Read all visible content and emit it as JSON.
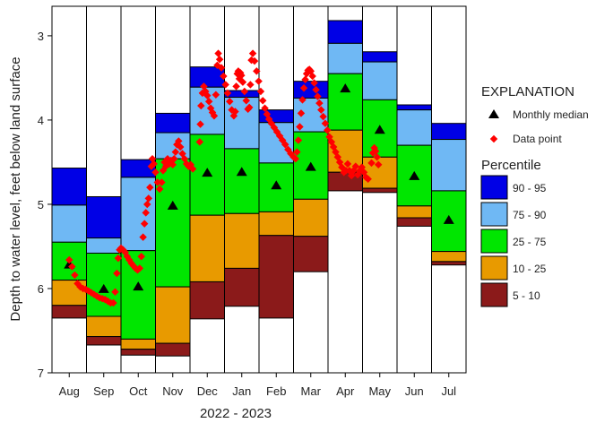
{
  "chart_data": {
    "type": "bar",
    "xlabel": "2022 - 2023",
    "ylabel": "Depth to water level, feet below land surface",
    "ylim": [
      7,
      2.65
    ],
    "y_inverted": true,
    "y_ticks": [
      3,
      4,
      5,
      6,
      7
    ],
    "grid": false,
    "legend_position": "right",
    "categories": [
      "Aug",
      "Sep",
      "Oct",
      "Nov",
      "Dec",
      "Jan",
      "Feb",
      "Mar",
      "Apr",
      "May",
      "Jun",
      "Jul"
    ],
    "percentile_bands": [
      {
        "name": "90 - 95",
        "color": "#0000e6",
        "top": [
          4.57,
          4.91,
          4.47,
          3.92,
          3.37,
          3.65,
          3.88,
          3.54,
          2.82,
          3.19,
          3.82,
          4.04
        ]
      },
      {
        "name": "75 - 90",
        "color": "#6fb8f4",
        "top": [
          5.01,
          5.4,
          4.68,
          4.15,
          3.61,
          3.73,
          4.03,
          3.74,
          3.09,
          3.31,
          3.88,
          4.23
        ]
      },
      {
        "name": "25 - 75",
        "color": "#00e600",
        "top": [
          5.45,
          5.58,
          5.55,
          4.46,
          4.17,
          4.34,
          4.51,
          4.14,
          3.45,
          3.76,
          4.3,
          4.84
        ]
      },
      {
        "name": "10 - 25",
        "color": "#e89a00",
        "top": [
          5.9,
          6.33,
          6.6,
          5.98,
          5.13,
          5.11,
          5.09,
          4.94,
          4.12,
          4.44,
          5.02,
          5.56
        ]
      },
      {
        "name": "5 - 10",
        "color": "#8b1a1a",
        "top": [
          6.2,
          6.57,
          6.72,
          6.65,
          5.92,
          5.76,
          5.37,
          5.38,
          4.62,
          4.81,
          5.16,
          5.68
        ],
        "bottom": [
          6.35,
          6.67,
          6.79,
          6.8,
          6.36,
          6.21,
          6.35,
          5.8,
          4.84,
          4.86,
          5.26,
          5.72
        ]
      }
    ],
    "monthly_median": [
      5.72,
      6.01,
      5.98,
      5.02,
      4.63,
      4.62,
      4.78,
      4.56,
      3.63,
      4.12,
      4.67,
      5.19
    ],
    "data_points": [
      {
        "x": 0.0,
        "y": 5.66
      },
      {
        "x": 0.08,
        "y": 5.74
      },
      {
        "x": 0.16,
        "y": 5.84
      },
      {
        "x": 0.24,
        "y": 5.94
      },
      {
        "x": 0.32,
        "y": 5.98
      },
      {
        "x": 0.4,
        "y": 6.0
      },
      {
        "x": 0.48,
        "y": 6.01
      },
      {
        "x": 0.56,
        "y": 6.03
      },
      {
        "x": 0.64,
        "y": 6.05
      },
      {
        "x": 0.72,
        "y": 6.07
      },
      {
        "x": 0.8,
        "y": 6.09
      },
      {
        "x": 0.88,
        "y": 6.11
      },
      {
        "x": 0.96,
        "y": 6.12
      },
      {
        "x": 1.04,
        "y": 6.13
      },
      {
        "x": 1.12,
        "y": 6.15
      },
      {
        "x": 1.2,
        "y": 6.17
      },
      {
        "x": 1.28,
        "y": 6.17
      },
      {
        "x": 1.33,
        "y": 6.04
      },
      {
        "x": 1.38,
        "y": 5.82
      },
      {
        "x": 1.42,
        "y": 5.64
      },
      {
        "x": 1.46,
        "y": 5.54
      },
      {
        "x": 1.5,
        "y": 5.52
      },
      {
        "x": 1.56,
        "y": 5.54
      },
      {
        "x": 1.62,
        "y": 5.57
      },
      {
        "x": 1.68,
        "y": 5.62
      },
      {
        "x": 1.74,
        "y": 5.66
      },
      {
        "x": 1.8,
        "y": 5.7
      },
      {
        "x": 1.86,
        "y": 5.73
      },
      {
        "x": 1.92,
        "y": 5.76
      },
      {
        "x": 1.98,
        "y": 5.78
      },
      {
        "x": 2.04,
        "y": 5.76
      },
      {
        "x": 2.09,
        "y": 5.62
      },
      {
        "x": 2.14,
        "y": 5.39
      },
      {
        "x": 2.18,
        "y": 5.23
      },
      {
        "x": 2.22,
        "y": 5.1
      },
      {
        "x": 2.26,
        "y": 5.0
      },
      {
        "x": 2.3,
        "y": 4.93
      },
      {
        "x": 2.34,
        "y": 4.8
      },
      {
        "x": 2.38,
        "y": 4.55
      },
      {
        "x": 2.41,
        "y": 4.46
      },
      {
        "x": 2.45,
        "y": 4.52
      },
      {
        "x": 2.5,
        "y": 4.62
      },
      {
        "x": 2.56,
        "y": 4.74
      },
      {
        "x": 2.62,
        "y": 4.82
      },
      {
        "x": 2.68,
        "y": 4.74
      },
      {
        "x": 2.72,
        "y": 4.6
      },
      {
        "x": 2.76,
        "y": 4.5
      },
      {
        "x": 2.8,
        "y": 4.55
      },
      {
        "x": 2.85,
        "y": 4.46
      },
      {
        "x": 2.9,
        "y": 4.52
      },
      {
        "x": 2.95,
        "y": 4.48
      },
      {
        "x": 3.0,
        "y": 4.53
      },
      {
        "x": 3.04,
        "y": 4.46
      },
      {
        "x": 3.08,
        "y": 4.38
      },
      {
        "x": 3.12,
        "y": 4.29
      },
      {
        "x": 3.17,
        "y": 4.25
      },
      {
        "x": 3.22,
        "y": 4.32
      },
      {
        "x": 3.28,
        "y": 4.4
      },
      {
        "x": 3.34,
        "y": 4.46
      },
      {
        "x": 3.4,
        "y": 4.52
      },
      {
        "x": 3.46,
        "y": 4.55
      },
      {
        "x": 3.52,
        "y": 4.53
      },
      {
        "x": 3.58,
        "y": 4.58
      },
      {
        "x": 3.78,
        "y": 4.26
      },
      {
        "x": 3.8,
        "y": 4.05
      },
      {
        "x": 3.82,
        "y": 3.83
      },
      {
        "x": 3.86,
        "y": 3.68
      },
      {
        "x": 3.9,
        "y": 3.6
      },
      {
        "x": 3.95,
        "y": 3.66
      },
      {
        "x": 4.0,
        "y": 3.71
      },
      {
        "x": 4.05,
        "y": 3.78
      },
      {
        "x": 4.1,
        "y": 3.86
      },
      {
        "x": 4.15,
        "y": 3.91
      },
      {
        "x": 4.2,
        "y": 3.95
      },
      {
        "x": 4.25,
        "y": 3.7
      },
      {
        "x": 4.29,
        "y": 3.35
      },
      {
        "x": 4.32,
        "y": 3.21
      },
      {
        "x": 4.36,
        "y": 3.28
      },
      {
        "x": 4.41,
        "y": 3.38
      },
      {
        "x": 4.47,
        "y": 3.48
      },
      {
        "x": 4.53,
        "y": 3.58
      },
      {
        "x": 4.59,
        "y": 3.68
      },
      {
        "x": 4.65,
        "y": 3.78
      },
      {
        "x": 4.71,
        "y": 3.88
      },
      {
        "x": 4.77,
        "y": 3.95
      },
      {
        "x": 4.81,
        "y": 3.9
      },
      {
        "x": 4.84,
        "y": 3.6
      },
      {
        "x": 4.87,
        "y": 3.45
      },
      {
        "x": 4.9,
        "y": 3.42
      },
      {
        "x": 4.93,
        "y": 3.51
      },
      {
        "x": 4.96,
        "y": 3.44
      },
      {
        "x": 4.99,
        "y": 3.47
      },
      {
        "x": 5.03,
        "y": 3.55
      },
      {
        "x": 5.08,
        "y": 3.66
      },
      {
        "x": 5.13,
        "y": 3.77
      },
      {
        "x": 5.18,
        "y": 3.87
      },
      {
        "x": 5.22,
        "y": 3.85
      },
      {
        "x": 5.25,
        "y": 3.58
      },
      {
        "x": 5.28,
        "y": 3.29
      },
      {
        "x": 5.32,
        "y": 3.21
      },
      {
        "x": 5.37,
        "y": 3.3
      },
      {
        "x": 5.43,
        "y": 3.42
      },
      {
        "x": 5.49,
        "y": 3.54
      },
      {
        "x": 5.55,
        "y": 3.66
      },
      {
        "x": 5.61,
        "y": 3.77
      },
      {
        "x": 5.67,
        "y": 3.86
      },
      {
        "x": 5.73,
        "y": 3.93
      },
      {
        "x": 5.79,
        "y": 3.99
      },
      {
        "x": 5.86,
        "y": 4.04
      },
      {
        "x": 5.94,
        "y": 4.09
      },
      {
        "x": 6.02,
        "y": 4.14
      },
      {
        "x": 6.1,
        "y": 4.19
      },
      {
        "x": 6.18,
        "y": 4.24
      },
      {
        "x": 6.26,
        "y": 4.29
      },
      {
        "x": 6.34,
        "y": 4.35
      },
      {
        "x": 6.42,
        "y": 4.4
      },
      {
        "x": 6.5,
        "y": 4.44
      },
      {
        "x": 6.56,
        "y": 4.46
      },
      {
        "x": 6.6,
        "y": 4.38
      },
      {
        "x": 6.64,
        "y": 4.24
      },
      {
        "x": 6.68,
        "y": 4.08
      },
      {
        "x": 6.72,
        "y": 3.92
      },
      {
        "x": 6.76,
        "y": 3.76
      },
      {
        "x": 6.8,
        "y": 3.62
      },
      {
        "x": 6.84,
        "y": 3.52
      },
      {
        "x": 6.88,
        "y": 3.45
      },
      {
        "x": 6.92,
        "y": 3.41
      },
      {
        "x": 6.96,
        "y": 3.4
      },
      {
        "x": 7.0,
        "y": 3.42
      },
      {
        "x": 7.05,
        "y": 3.48
      },
      {
        "x": 7.1,
        "y": 3.56
      },
      {
        "x": 7.15,
        "y": 3.64
      },
      {
        "x": 7.2,
        "y": 3.72
      },
      {
        "x": 7.25,
        "y": 3.8
      },
      {
        "x": 7.3,
        "y": 3.88
      },
      {
        "x": 7.36,
        "y": 3.96
      },
      {
        "x": 7.42,
        "y": 4.04
      },
      {
        "x": 7.48,
        "y": 4.12
      },
      {
        "x": 7.54,
        "y": 4.2
      },
      {
        "x": 7.6,
        "y": 4.26
      },
      {
        "x": 7.66,
        "y": 4.32
      },
      {
        "x": 7.72,
        "y": 4.38
      },
      {
        "x": 7.78,
        "y": 4.44
      },
      {
        "x": 7.84,
        "y": 4.5
      },
      {
        "x": 7.9,
        "y": 4.56
      },
      {
        "x": 7.96,
        "y": 4.62
      },
      {
        "x": 8.02,
        "y": 4.6
      },
      {
        "x": 8.07,
        "y": 4.52
      },
      {
        "x": 8.12,
        "y": 4.6
      },
      {
        "x": 8.18,
        "y": 4.66
      },
      {
        "x": 8.24,
        "y": 4.6
      },
      {
        "x": 8.3,
        "y": 4.55
      },
      {
        "x": 8.36,
        "y": 4.65
      },
      {
        "x": 8.42,
        "y": 4.6
      },
      {
        "x": 8.48,
        "y": 4.56
      },
      {
        "x": 8.54,
        "y": 4.62
      },
      {
        "x": 8.6,
        "y": 4.68
      },
      {
        "x": 8.66,
        "y": 4.7
      },
      {
        "x": 8.76,
        "y": 4.51
      },
      {
        "x": 8.8,
        "y": 4.39
      },
      {
        "x": 8.84,
        "y": 4.33
      },
      {
        "x": 8.88,
        "y": 4.37
      },
      {
        "x": 8.92,
        "y": 4.44
      },
      {
        "x": 8.96,
        "y": 4.53
      }
    ]
  },
  "legend": {
    "title": "EXPLANATION",
    "median_label": "Monthly median",
    "point_label": "Data point",
    "percentile_title": "Percentile"
  },
  "colors": {
    "median": "#000000",
    "point": "#ff0000",
    "axis": "#000000"
  }
}
